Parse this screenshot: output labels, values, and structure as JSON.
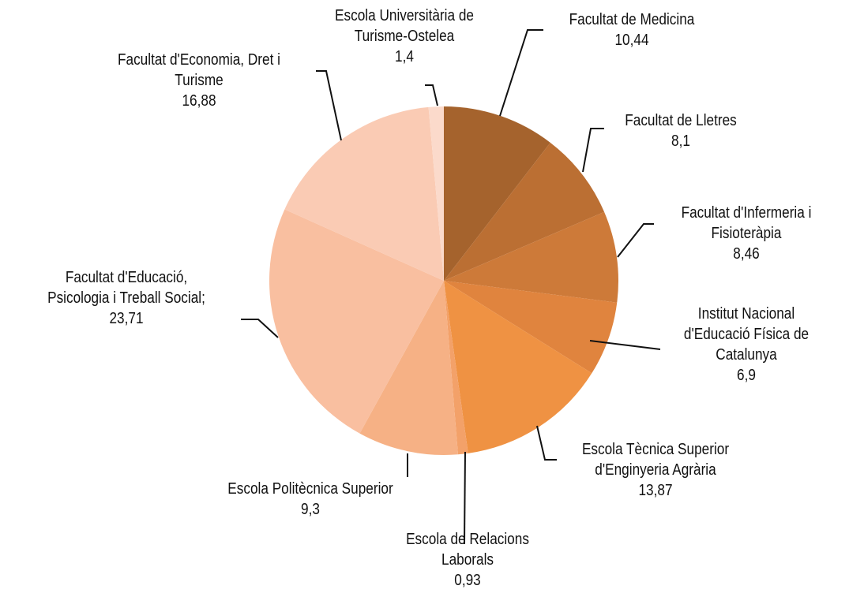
{
  "chart_data": {
    "type": "pie",
    "categories": [
      "Facultat de Medicina",
      "Facultat de Lletres",
      "Facultat d'Infermeria i\nFisioteràpia",
      "Institut Nacional\nd'Educació Física de\nCatalunya",
      "Escola Tècnica Superior\nd'Enginyeria Agrària",
      "Escola de Relacions\nLaborals",
      "Escola Politècnica Superior",
      "Facultat d'Educació,\nPsicologia i Treball Social;",
      "Facultat d'Economia, Dret i\nTurisme",
      "Escola Universitària de\nTurisme-Ostelea"
    ],
    "values": [
      10.44,
      8.1,
      8.46,
      6.9,
      13.87,
      0.93,
      9.3,
      23.71,
      16.88,
      1.4
    ],
    "value_labels": [
      "10,44",
      "8,1",
      "8,46",
      "6,9",
      "13,87",
      "0,93",
      "9,3",
      "23,71",
      "16,88",
      "1,4"
    ],
    "colors": [
      "#a5632d",
      "#bb6f33",
      "#cd7a39",
      "#e0843e",
      "#ef9243",
      "#f3a169",
      "#f6b185",
      "#f9bfa0",
      "#facbb4",
      "#fbdacb"
    ]
  }
}
